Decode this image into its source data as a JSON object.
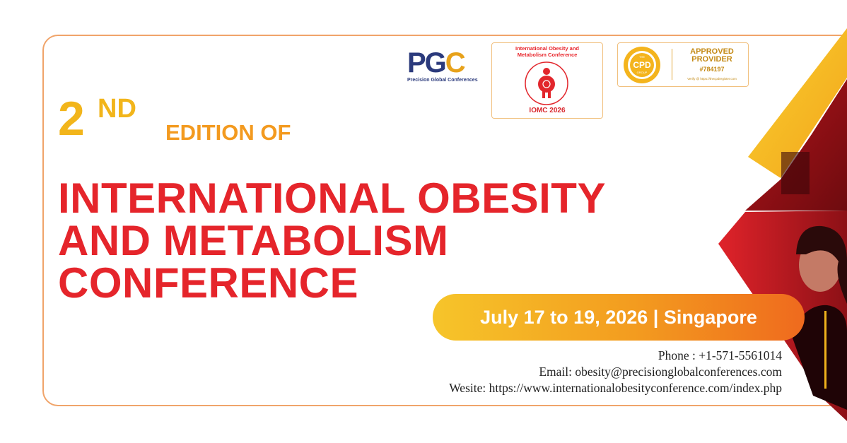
{
  "colors": {
    "border": "#f0a46a",
    "title_red": "#e5252b",
    "edition_yellow": "#f2b51b",
    "edition_orange": "#f39a1f",
    "pill_start": "#f6c52a",
    "pill_end": "#ef6a1e"
  },
  "logos": {
    "pgc": {
      "letters": "PGC",
      "subtitle": "Precision Global Conferences"
    },
    "iomc": {
      "title": "International Obesity and\nMetabolism Conference",
      "code": "IOMC 2026"
    },
    "cpd": {
      "badge_top": "THE",
      "badge_mid": "CPD",
      "badge_bottom": "GROUP",
      "approved": "APPROVED\nPROVIDER",
      "number": "#784197",
      "verify": "Verify @ https://thecpdregister.com"
    }
  },
  "heading": {
    "edition_number": "2",
    "edition_suffix": "ND",
    "edition_of": "EDITION OF",
    "title_lines": [
      "INTERNATIONAL OBESITY",
      "AND METABOLISM",
      "CONFERENCE"
    ]
  },
  "event": {
    "date_location": "July 17 to 19, 2026 | Singapore"
  },
  "contact": {
    "phone": "Phone : +1-571-5561014",
    "email": "Email: obesity@precisionglobalconferences.com",
    "website": "Wesite: https://www.internationalobesityconference.com/index.php"
  }
}
